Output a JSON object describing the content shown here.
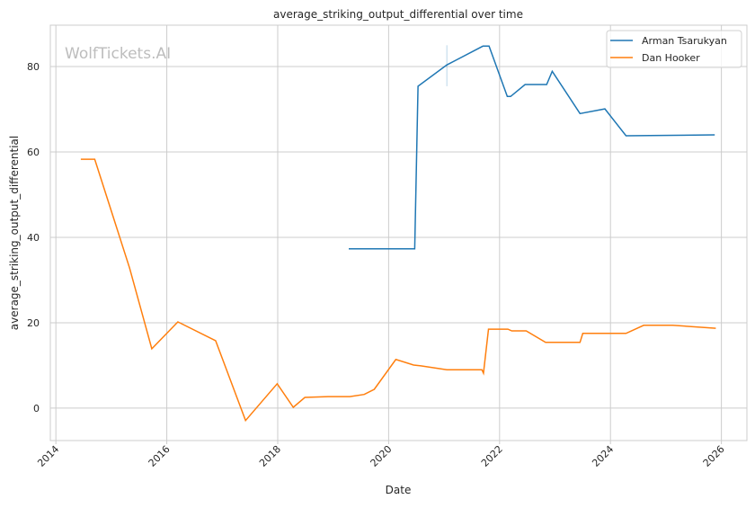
{
  "chart_data": {
    "type": "line",
    "title": "average_striking_output_differential over time",
    "xlabel": "Date",
    "ylabel": "average_striking_output_differential",
    "xlim": [
      2013.9,
      2026.46
    ],
    "ylim": [
      -7.6,
      89.7
    ],
    "xticks": [
      2014,
      2016,
      2018,
      2020,
      2022,
      2024,
      2026
    ],
    "yticks": [
      0,
      20,
      40,
      60,
      80
    ],
    "grid": true,
    "legend": "top-right",
    "watermark": "WolfTickets.AI",
    "series": [
      {
        "name": "Arman Tsarukyan",
        "color": "#1f77b4",
        "x": [
          2019.28,
          2020.47,
          2020.53,
          2021.05,
          2021.7,
          2021.81,
          2022.14,
          2022.2,
          2022.46,
          2022.85,
          2022.95,
          2023.45,
          2023.9,
          2024.28,
          2025.88
        ],
        "y": [
          37.3,
          37.3,
          75.4,
          80.4,
          84.8,
          84.8,
          73.0,
          73.0,
          75.8,
          75.8,
          78.9,
          69.0,
          70.1,
          63.8,
          64.0
        ]
      },
      {
        "name": "Dan Hooker",
        "color": "#ff7f0e",
        "x": [
          2014.45,
          2014.7,
          2015.33,
          2015.73,
          2016.2,
          2016.88,
          2017.42,
          2017.99,
          2018.28,
          2018.49,
          2018.91,
          2019.3,
          2019.56,
          2019.74,
          2020.13,
          2020.45,
          2020.58,
          2021.05,
          2021.68,
          2021.71,
          2021.8,
          2022.15,
          2022.22,
          2022.48,
          2022.83,
          2023.45,
          2023.5,
          2024.28,
          2024.6,
          2025.12,
          2025.9
        ],
        "y": [
          58.3,
          58.3,
          32.8,
          13.9,
          20.2,
          15.8,
          -2.9,
          5.7,
          0.2,
          2.5,
          2.7,
          2.7,
          3.2,
          4.4,
          11.4,
          10.1,
          9.9,
          9.0,
          9.0,
          8.2,
          18.5,
          18.5,
          18.1,
          18.1,
          15.4,
          15.4,
          17.5,
          17.5,
          19.4,
          19.4,
          18.7
        ]
      }
    ]
  }
}
